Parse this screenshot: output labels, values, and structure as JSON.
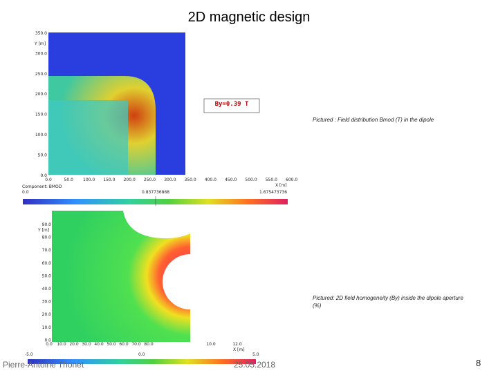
{
  "title": "2D magnetic design",
  "figure_top": {
    "y_label": "Y [m]",
    "y_ticks": [
      "350.0",
      "300.0",
      "250.0",
      "200.0",
      "150.0",
      "100.0",
      "50.0",
      "0.0"
    ],
    "x_label": "X [m]",
    "x_ticks": [
      "0.0",
      "50.0",
      "100.0",
      "150.0",
      "200.0",
      "250.0",
      "300.0",
      "350.0",
      "400.0",
      "450.0",
      "500.0",
      "550.0",
      "600.0"
    ],
    "annotation": "By=0.39 T",
    "colorbar_title": "Component: BMOD",
    "colorbar_labels": [
      "0.0",
      "0.837736868",
      "1.675473736"
    ],
    "caption": "Pictured : Field distribution Bmod (T) in the dipole"
  },
  "figure_bottom": {
    "y_label": "Y [m]",
    "y_ticks": [
      "90.0",
      "80.0",
      "70.0",
      "60.0",
      "50.0",
      "40.0",
      "30.0",
      "20.0",
      "10.0",
      "0.0"
    ],
    "x_label": "X [m]",
    "x_ticks": [
      "0.0",
      "10.0",
      "20.0",
      "30.0",
      "40.0",
      "50.0",
      "60.0",
      "70.0",
      "80.0",
      "10.0",
      "12.0"
    ],
    "colorbar_labels": [
      "-5.0",
      "0.0",
      "5.0"
    ],
    "caption": "Pictured: 2D field homogeneity (By) inside the dipole aperture (%)"
  },
  "footer": {
    "author": "Pierre-Antoine Thonet",
    "date": "25.05.2018",
    "page": "8"
  }
}
